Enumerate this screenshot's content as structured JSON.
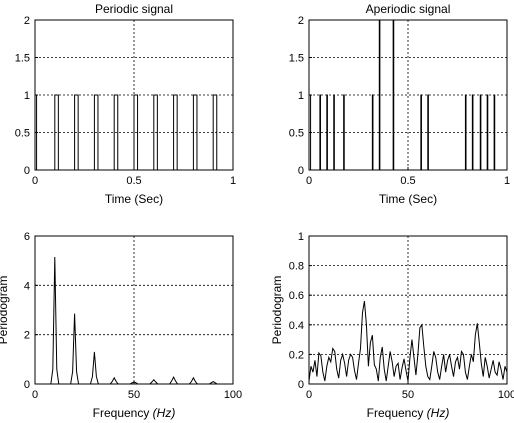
{
  "chart_data": [
    {
      "type": "line",
      "title": "Periodic signal",
      "xlabel": "Time (Sec)",
      "ylabel": "",
      "xlim": [
        0,
        1
      ],
      "ylim": [
        0,
        2
      ],
      "xticks": [
        "0",
        "0.5",
        "1"
      ],
      "yticks": [
        "0",
        "0.5",
        "1",
        "1.5",
        "2"
      ],
      "xtick_values": [
        0,
        0.5,
        1
      ],
      "ytick_values": [
        0,
        0.5,
        1,
        1.5,
        2
      ],
      "grid": true,
      "series": [
        {
          "values": [
            [
              0.0,
              0
            ],
            [
              0.0,
              1
            ],
            [
              0.008,
              1
            ],
            [
              0.008,
              0
            ],
            [
              0.1,
              0
            ],
            [
              0.1,
              1
            ],
            [
              0.118,
              1
            ],
            [
              0.118,
              0
            ],
            [
              0.2,
              0
            ],
            [
              0.2,
              1
            ],
            [
              0.218,
              1
            ],
            [
              0.218,
              0
            ],
            [
              0.3,
              0
            ],
            [
              0.3,
              1
            ],
            [
              0.318,
              1
            ],
            [
              0.318,
              0
            ],
            [
              0.4,
              0
            ],
            [
              0.4,
              1
            ],
            [
              0.418,
              1
            ],
            [
              0.418,
              0
            ],
            [
              0.5,
              0
            ],
            [
              0.5,
              1
            ],
            [
              0.518,
              1
            ],
            [
              0.518,
              0
            ],
            [
              0.6,
              0
            ],
            [
              0.6,
              1
            ],
            [
              0.618,
              1
            ],
            [
              0.618,
              0
            ],
            [
              0.7,
              0
            ],
            [
              0.7,
              1
            ],
            [
              0.718,
              1
            ],
            [
              0.718,
              0
            ],
            [
              0.8,
              0
            ],
            [
              0.8,
              1
            ],
            [
              0.818,
              1
            ],
            [
              0.818,
              0
            ],
            [
              0.9,
              0
            ],
            [
              0.9,
              1
            ],
            [
              0.918,
              1
            ],
            [
              0.918,
              0
            ],
            [
              1.0,
              0
            ]
          ]
        }
      ]
    },
    {
      "type": "line",
      "title": "Aperiodic signal",
      "xlabel": "Time (Sec)",
      "ylabel": "",
      "xlim": [
        0,
        1
      ],
      "ylim": [
        0,
        2
      ],
      "xticks": [
        "0",
        "0.5",
        "1"
      ],
      "yticks": [
        "0",
        "0.5",
        "1",
        "1.5",
        "2"
      ],
      "xtick_values": [
        0,
        0.5,
        1
      ],
      "ytick_values": [
        0,
        0.5,
        1,
        1.5,
        2
      ],
      "grid": true,
      "series": [
        {
          "values": [
            [
              0.0,
              0
            ],
            [
              0.0,
              1
            ],
            [
              0.008,
              1
            ],
            [
              0.008,
              0
            ],
            [
              0.055,
              0
            ],
            [
              0.055,
              1
            ],
            [
              0.058,
              1
            ],
            [
              0.058,
              0
            ],
            [
              0.09,
              0
            ],
            [
              0.09,
              1
            ],
            [
              0.093,
              1
            ],
            [
              0.093,
              0
            ],
            [
              0.125,
              0
            ],
            [
              0.125,
              1
            ],
            [
              0.128,
              1
            ],
            [
              0.128,
              0
            ],
            [
              0.175,
              0
            ],
            [
              0.175,
              1
            ],
            [
              0.178,
              1
            ],
            [
              0.178,
              0
            ],
            [
              0.32,
              0
            ],
            [
              0.32,
              1
            ],
            [
              0.323,
              1
            ],
            [
              0.323,
              0
            ],
            [
              0.355,
              0
            ],
            [
              0.355,
              2
            ],
            [
              0.358,
              2
            ],
            [
              0.358,
              0
            ],
            [
              0.425,
              0
            ],
            [
              0.425,
              2
            ],
            [
              0.428,
              2
            ],
            [
              0.428,
              0
            ],
            [
              0.565,
              0
            ],
            [
              0.565,
              1
            ],
            [
              0.568,
              1
            ],
            [
              0.568,
              0
            ],
            [
              0.6,
              0
            ],
            [
              0.6,
              1
            ],
            [
              0.603,
              1
            ],
            [
              0.603,
              0
            ],
            [
              0.79,
              0
            ],
            [
              0.79,
              1
            ],
            [
              0.793,
              1
            ],
            [
              0.793,
              0
            ],
            [
              0.825,
              0
            ],
            [
              0.825,
              1
            ],
            [
              0.828,
              1
            ],
            [
              0.828,
              0
            ],
            [
              0.865,
              0
            ],
            [
              0.865,
              1
            ],
            [
              0.868,
              1
            ],
            [
              0.868,
              0
            ],
            [
              0.9,
              0
            ],
            [
              0.9,
              1
            ],
            [
              0.903,
              1
            ],
            [
              0.903,
              0
            ],
            [
              0.935,
              0
            ],
            [
              0.935,
              1
            ],
            [
              0.938,
              1
            ],
            [
              0.938,
              0
            ],
            [
              1.0,
              0
            ]
          ]
        }
      ]
    },
    {
      "type": "line",
      "title": "",
      "xlabel": "Frequency",
      "xlabel_unit": "(Hz)",
      "ylabel": "Periodogram",
      "xlim": [
        0,
        100
      ],
      "ylim": [
        0,
        6
      ],
      "xticks": [
        "0",
        "50",
        "100"
      ],
      "yticks": [
        "0",
        "2",
        "4",
        "6"
      ],
      "xtick_values": [
        0,
        50,
        100
      ],
      "ytick_values": [
        0,
        2,
        4,
        6
      ],
      "grid": true,
      "series": [
        {
          "values": [
            [
              0,
              0
            ],
            [
              8,
              0
            ],
            [
              9,
              0.6
            ],
            [
              10,
              5.15
            ],
            [
              11,
              0.6
            ],
            [
              12,
              0
            ],
            [
              18,
              0
            ],
            [
              19,
              0.5
            ],
            [
              20,
              2.85
            ],
            [
              21,
              0.5
            ],
            [
              22,
              0
            ],
            [
              28,
              0
            ],
            [
              29,
              0.3
            ],
            [
              30,
              1.3
            ],
            [
              31,
              0.3
            ],
            [
              32,
              0
            ],
            [
              38,
              0
            ],
            [
              39,
              0.1
            ],
            [
              40,
              0.25
            ],
            [
              41,
              0.1
            ],
            [
              42,
              0
            ],
            [
              48,
              0
            ],
            [
              49,
              0.05
            ],
            [
              50,
              0.08
            ],
            [
              51,
              0.05
            ],
            [
              52,
              0
            ],
            [
              58,
              0
            ],
            [
              59,
              0.08
            ],
            [
              60,
              0.17
            ],
            [
              61,
              0.08
            ],
            [
              62,
              0
            ],
            [
              68,
              0
            ],
            [
              69,
              0.12
            ],
            [
              70,
              0.28
            ],
            [
              71,
              0.12
            ],
            [
              72,
              0
            ],
            [
              78,
              0
            ],
            [
              79,
              0.1
            ],
            [
              80,
              0.25
            ],
            [
              81,
              0.1
            ],
            [
              82,
              0
            ],
            [
              88,
              0
            ],
            [
              89,
              0.05
            ],
            [
              90,
              0.1
            ],
            [
              91,
              0.05
            ],
            [
              92,
              0
            ],
            [
              100,
              0
            ]
          ]
        }
      ]
    },
    {
      "type": "line",
      "title": "",
      "xlabel": "Frequency",
      "xlabel_unit": "(Hz)",
      "ylabel": "Periodogram",
      "xlim": [
        0,
        100
      ],
      "ylim": [
        0,
        1
      ],
      "xticks": [
        "0",
        "50",
        "100"
      ],
      "yticks": [
        "0",
        "0.2",
        "0.4",
        "0.6",
        "0.8",
        "1"
      ],
      "xtick_values": [
        0,
        50,
        100
      ],
      "ytick_values": [
        0,
        0.2,
        0.4,
        0.6,
        0.8,
        1
      ],
      "grid": true,
      "series": [
        {
          "values": [
            [
              0,
              0.02
            ],
            [
              1,
              0.12
            ],
            [
              2,
              0.08
            ],
            [
              3,
              0.16
            ],
            [
              4,
              0.05
            ],
            [
              5,
              0.21
            ],
            [
              6,
              0.19
            ],
            [
              7,
              0.08
            ],
            [
              8,
              0.02
            ],
            [
              9,
              0.12
            ],
            [
              10,
              0.18
            ],
            [
              11,
              0.15
            ],
            [
              12,
              0.24
            ],
            [
              13,
              0.22
            ],
            [
              14,
              0.1
            ],
            [
              15,
              0.04
            ],
            [
              16,
              0.16
            ],
            [
              17,
              0.2
            ],
            [
              18,
              0.14
            ],
            [
              19,
              0.05
            ],
            [
              20,
              0.16
            ],
            [
              21,
              0.2
            ],
            [
              22,
              0.18
            ],
            [
              23,
              0.09
            ],
            [
              24,
              0.03
            ],
            [
              25,
              0.14
            ],
            [
              26,
              0.24
            ],
            [
              27,
              0.48
            ],
            [
              28,
              0.56
            ],
            [
              29,
              0.4
            ],
            [
              30,
              0.12
            ],
            [
              31,
              0.28
            ],
            [
              32,
              0.33
            ],
            [
              33,
              0.13
            ],
            [
              34,
              0.1
            ],
            [
              35,
              0.02
            ],
            [
              36,
              0.18
            ],
            [
              37,
              0.25
            ],
            [
              38,
              0.1
            ],
            [
              39,
              0.02
            ],
            [
              40,
              0.12
            ],
            [
              41,
              0.22
            ],
            [
              42,
              0.15
            ],
            [
              43,
              0.05
            ],
            [
              44,
              0.12
            ],
            [
              45,
              0.14
            ],
            [
              46,
              0.03
            ],
            [
              47,
              0.11
            ],
            [
              48,
              0.17
            ],
            [
              49,
              0.09
            ],
            [
              50,
              0.02
            ],
            [
              51,
              0.18
            ],
            [
              52,
              0.3
            ],
            [
              53,
              0.18
            ],
            [
              54,
              0.06
            ],
            [
              55,
              0.2
            ],
            [
              56,
              0.38
            ],
            [
              57,
              0.4
            ],
            [
              58,
              0.25
            ],
            [
              59,
              0.12
            ],
            [
              60,
              0.05
            ],
            [
              61,
              0.03
            ],
            [
              62,
              0.12
            ],
            [
              63,
              0.22
            ],
            [
              64,
              0.18
            ],
            [
              65,
              0.08
            ],
            [
              66,
              0.03
            ],
            [
              67,
              0.12
            ],
            [
              68,
              0.2
            ],
            [
              69,
              0.08
            ],
            [
              70,
              0.16
            ],
            [
              71,
              0.2
            ],
            [
              72,
              0.12
            ],
            [
              73,
              0.05
            ],
            [
              74,
              0.15
            ],
            [
              75,
              0.18
            ],
            [
              76,
              0.1
            ],
            [
              77,
              0.22
            ],
            [
              78,
              0.2
            ],
            [
              79,
              0.08
            ],
            [
              80,
              0.03
            ],
            [
              81,
              0.12
            ],
            [
              82,
              0.2
            ],
            [
              83,
              0.15
            ],
            [
              84,
              0.33
            ],
            [
              85,
              0.41
            ],
            [
              86,
              0.28
            ],
            [
              87,
              0.14
            ],
            [
              88,
              0.05
            ],
            [
              89,
              0.18
            ],
            [
              90,
              0.12
            ],
            [
              91,
              0.04
            ],
            [
              92,
              0.1
            ],
            [
              93,
              0.16
            ],
            [
              94,
              0.08
            ],
            [
              95,
              0.06
            ],
            [
              96,
              0.15
            ],
            [
              97,
              0.1
            ],
            [
              98,
              0.03
            ],
            [
              99,
              0.12
            ],
            [
              100,
              0.08
            ]
          ]
        }
      ]
    }
  ]
}
